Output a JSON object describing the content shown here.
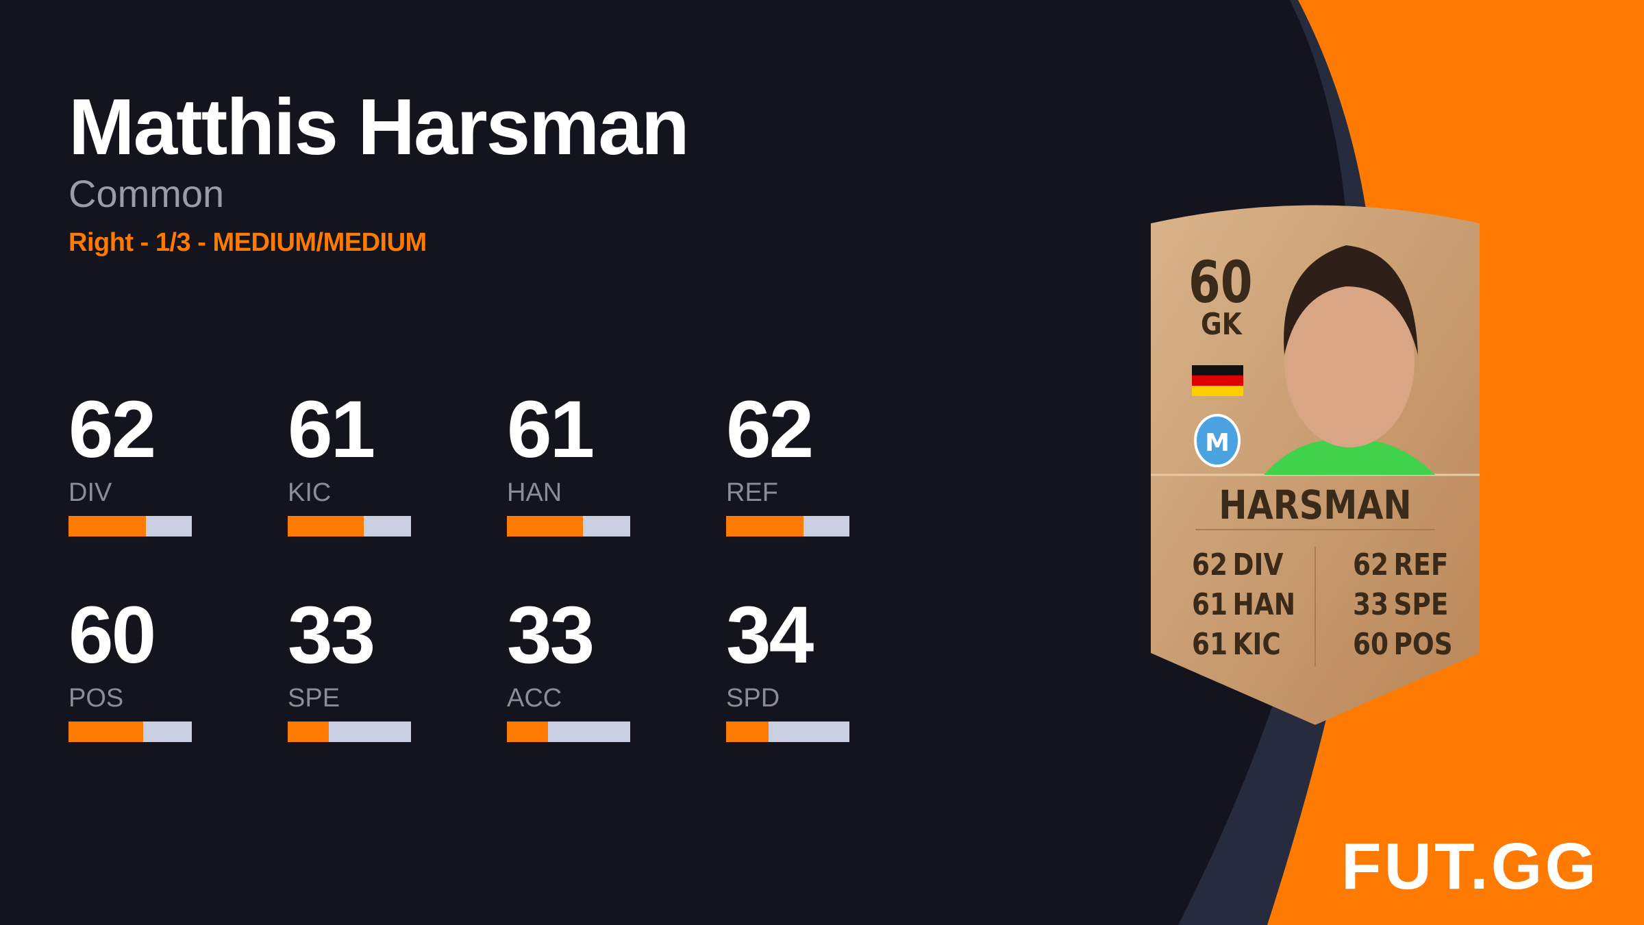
{
  "player": {
    "name": "Matthis Harsman",
    "rarity": "Common",
    "info": "Right - 1/3 - MEDIUM/MEDIUM"
  },
  "stats": [
    {
      "value": "62",
      "label": "DIV",
      "pct": 62
    },
    {
      "value": "61",
      "label": "KIC",
      "pct": 61
    },
    {
      "value": "61",
      "label": "HAN",
      "pct": 61
    },
    {
      "value": "62",
      "label": "REF",
      "pct": 62
    },
    {
      "value": "60",
      "label": "POS",
      "pct": 60
    },
    {
      "value": "33",
      "label": "SPE",
      "pct": 33
    },
    {
      "value": "33",
      "label": "ACC",
      "pct": 33
    },
    {
      "value": "34",
      "label": "SPD",
      "pct": 34
    }
  ],
  "card": {
    "rating": "60",
    "position": "GK",
    "name": "HARSMAN",
    "nation": "germany-flag",
    "club": "SV Meppen 1912",
    "left": [
      {
        "v": "62",
        "l": "DIV"
      },
      {
        "v": "61",
        "l": "HAN"
      },
      {
        "v": "61",
        "l": "KIC"
      }
    ],
    "right": [
      {
        "v": "62",
        "l": "REF"
      },
      {
        "v": "33",
        "l": "SPE"
      },
      {
        "v": "60",
        "l": "POS"
      }
    ]
  },
  "logo": "FUT.GG",
  "colors": {
    "accent": "#ff7a00",
    "background": "#13141d",
    "bar_track": "#cbcfe2",
    "card_bronze": "#c99b6e"
  }
}
